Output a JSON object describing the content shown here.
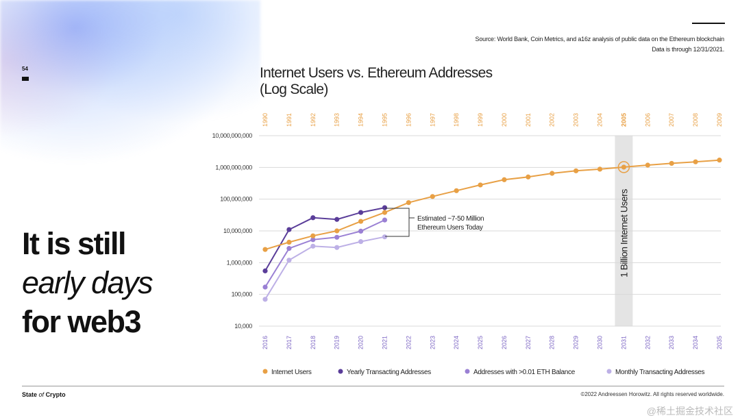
{
  "slide": {
    "page_number": "54",
    "headline_line1": "It is still",
    "headline_line2": "early days",
    "headline_line3": "for web3",
    "source_line1": "Source: World Bank, Coin Metrics, and a16z analysis of public data on the Ethereum blockchain",
    "source_line2": "Data is through 12/31/2021.",
    "footer_left_a": "State",
    "footer_left_b": "of",
    "footer_left_c": "Crypto",
    "footer_right": "©2022 Andreessen Horowitz. All rights reserved worldwide.",
    "watermark": "@稀土掘金技术社区"
  },
  "colors": {
    "internet_users": "#E8A045",
    "yearly_transacting": "#5A3D99",
    "eth_balance": "#9A80D4",
    "monthly_transacting": "#BDB0E6",
    "grid": "#D9D9D9",
    "highlight_band": "#E4E4E4"
  },
  "chart_data": {
    "type": "line",
    "title": "Internet Users vs. Ethereum Addresses",
    "subtitle": "(Log Scale)",
    "y_scale": "log",
    "ylim": [
      10000,
      10000000000
    ],
    "y_ticks": [
      10000,
      100000,
      1000000,
      10000000,
      100000000,
      1000000000,
      10000000000
    ],
    "y_tick_labels": [
      "10,000",
      "100,000",
      "1,000,000",
      "10,000,000",
      "100,000,000",
      "1,000,000,000",
      "10,000,000,000"
    ],
    "x_top_labels": [
      "1990",
      "1991",
      "1992",
      "1993",
      "1994",
      "1995",
      "1996",
      "1997",
      "1998",
      "1999",
      "2000",
      "2001",
      "2002",
      "2003",
      "2004",
      "2005",
      "2006",
      "2007",
      "2008",
      "2009"
    ],
    "x_bottom_labels": [
      "2016",
      "2017",
      "2018",
      "2019",
      "2020",
      "2021",
      "2022",
      "2023",
      "2024",
      "2025",
      "2026",
      "2027",
      "2028",
      "2029",
      "2030",
      "2031",
      "2032",
      "2033",
      "2034",
      "2035"
    ],
    "series": [
      {
        "name": "Internet Users",
        "color_key": "internet_users",
        "values": [
          2600000,
          4400000,
          7000000,
          10000000,
          20000000,
          38000000,
          78000000,
          121000000,
          185000000,
          280000000,
          410000000,
          500000000,
          650000000,
          780000000,
          880000000,
          1020000000,
          1180000000,
          1340000000,
          1500000000,
          1700000000
        ]
      },
      {
        "name": "Yearly Transacting Addresses",
        "color_key": "yearly_transacting",
        "values": [
          550000,
          11000000,
          26000000,
          23000000,
          38000000,
          54000000
        ]
      },
      {
        "name": "Addresses with >0.01 ETH Balance",
        "color_key": "eth_balance",
        "values": [
          170000,
          2800000,
          5300000,
          6300000,
          9800000,
          22000000
        ]
      },
      {
        "name": "Monthly Transacting Addresses",
        "color_key": "monthly_transacting",
        "values": [
          70000,
          1200000,
          3300000,
          3000000,
          4600000,
          6500000
        ]
      }
    ],
    "annotations": {
      "bracket_text_line1": "Estimated ~7-50 Million",
      "bracket_text_line2": "Ethereum Users Today",
      "milestone_label": "1 Billion Internet Users",
      "milestone_index": 15
    },
    "legend_position": "bottom"
  }
}
